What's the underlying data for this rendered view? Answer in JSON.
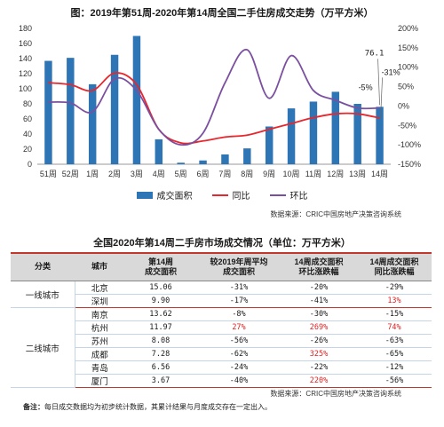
{
  "chart_data": {
    "type": "bar+line",
    "title": "图：2019年第51周-2020年第14周全国二手住房成交走势（万平方米）",
    "categories": [
      "51周",
      "52周",
      "1周",
      "2周",
      "3周",
      "4周",
      "5周",
      "6周",
      "7周",
      "8周",
      "9周",
      "10周",
      "11周",
      "12周",
      "13周",
      "14周"
    ],
    "left_axis": {
      "ticks": [
        0,
        20,
        40,
        60,
        80,
        100,
        120,
        140,
        160,
        180
      ],
      "ylim": [
        0,
        180
      ]
    },
    "right_axis": {
      "ticks": [
        "-150%",
        "-100%",
        "-50%",
        "0%",
        "50%",
        "100%",
        "150%",
        "200%"
      ],
      "ylim": [
        -150,
        200
      ]
    },
    "series": [
      {
        "name": "成交面积",
        "type": "bar",
        "color": "#2e75b6",
        "axis": "left",
        "values": [
          137,
          141,
          106,
          145,
          170,
          33,
          2,
          5,
          13,
          21,
          50,
          74,
          83,
          96,
          80,
          76.1
        ]
      },
      {
        "name": "同比",
        "type": "line",
        "color": "#e8262b",
        "axis": "right",
        "values": [
          60,
          55,
          40,
          85,
          55,
          -60,
          -95,
          -90,
          -80,
          -75,
          -60,
          -45,
          -30,
          -20,
          -20,
          -31
        ]
      },
      {
        "name": "环比",
        "type": "line",
        "color": "#7b4fa0",
        "axis": "right",
        "values": [
          10,
          8,
          -15,
          70,
          40,
          -60,
          -100,
          -70,
          60,
          145,
          20,
          130,
          40,
          15,
          -5,
          -5
        ]
      }
    ],
    "annotations": [
      "76.1",
      "-31%",
      "-5%"
    ]
  },
  "source_text": "数据来源：CRIC中国房地产决策咨询系统",
  "table": {
    "title": "全国2020年第14周二手房市场成交情况（单位：万平方米）",
    "headers": [
      "分类",
      "城市",
      "第14周\n成交面积",
      "较2019年周平均\n成交面积",
      "14周成交面积\n环比涨跌幅",
      "14周成交面积\n同比涨跌幅"
    ],
    "groups": [
      {
        "category": "一线城市",
        "rows": [
          {
            "city": "北京",
            "area": "15.06",
            "vs_avg": "-31%",
            "wow": "-20%",
            "yoy": "-29%"
          },
          {
            "city": "深圳",
            "area": "9.90",
            "vs_avg": "-17%",
            "wow": "-41%",
            "yoy": "13%"
          }
        ]
      },
      {
        "category": "二线城市",
        "rows": [
          {
            "city": "南京",
            "area": "13.62",
            "vs_avg": "-8%",
            "wow": "-30%",
            "yoy": "-15%"
          },
          {
            "city": "杭州",
            "area": "11.97",
            "vs_avg": "27%",
            "wow": "269%",
            "yoy": "74%"
          },
          {
            "city": "苏州",
            "area": "8.08",
            "vs_avg": "-56%",
            "wow": "-26%",
            "yoy": "-63%"
          },
          {
            "city": "成都",
            "area": "7.28",
            "vs_avg": "-62%",
            "wow": "325%",
            "yoy": "-65%"
          },
          {
            "city": "青岛",
            "area": "6.56",
            "vs_avg": "-24%",
            "wow": "-22%",
            "yoy": "-12%"
          },
          {
            "city": "厦门",
            "area": "3.67",
            "vs_avg": "-40%",
            "wow": "220%",
            "yoy": "-56%"
          }
        ]
      }
    ],
    "positive_color": "#e02020"
  },
  "note_label": "备注：",
  "note_text": "每日成交数据均为初步统计数据，其累计结果与月度成交存在一定出入。"
}
